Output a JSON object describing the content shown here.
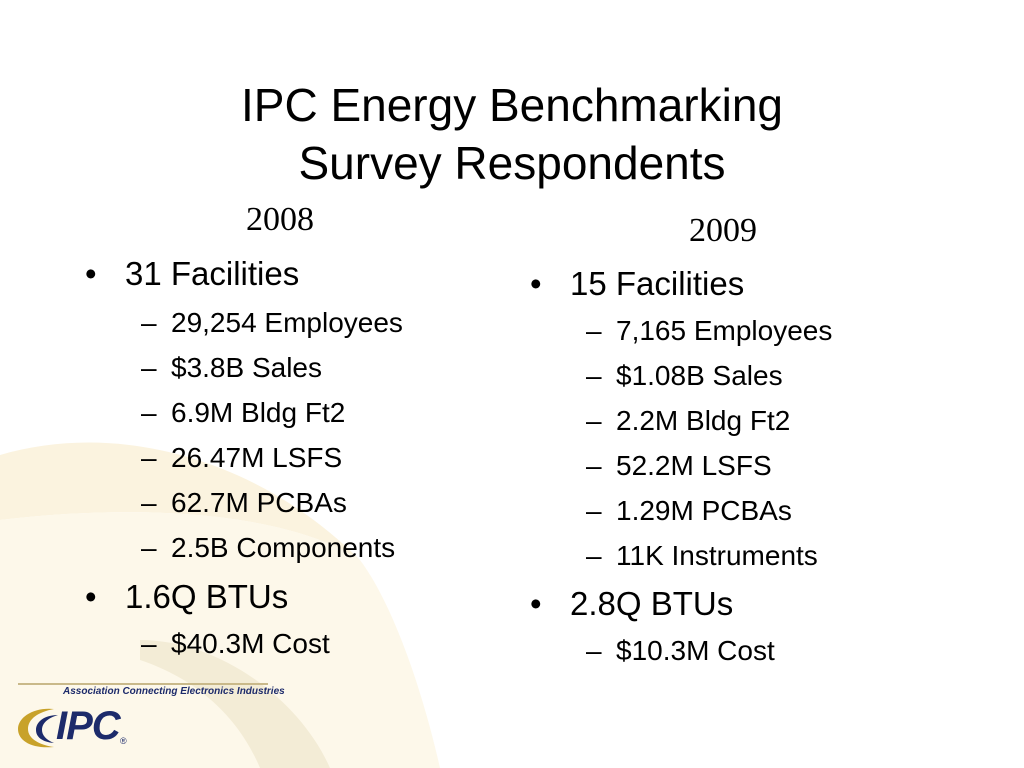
{
  "slide": {
    "title_line1": "IPC Energy Benchmarking",
    "title_line2": "Survey Respondents"
  },
  "col2008": {
    "year": "2008",
    "bullet_facilities": "31 Facilities",
    "facility_details": [
      "29,254 Employees",
      "$3.8B Sales",
      "6.9M Bldg Ft2",
      "26.47M LSFS",
      "62.7M PCBAs",
      "2.5B Components"
    ],
    "bullet_btus": "1.6Q BTUs",
    "cost": "$40.3M Cost"
  },
  "col2009": {
    "year": "2009",
    "bullet_facilities": "15 Facilities",
    "facility_details": [
      "7,165 Employees",
      "$1.08B Sales",
      "2.2M Bldg Ft2",
      "52.2M LSFS",
      "1.29M PCBAs",
      "11K Instruments"
    ],
    "bullet_btus": "2.8Q BTUs",
    "cost": "$10.3M Cost"
  },
  "markers": {
    "bullet": "•",
    "dash": "–"
  },
  "footer": {
    "tagline": "Association Connecting Electronics Industries",
    "logo_text": "IPC",
    "registered": "®"
  },
  "colors": {
    "swoosh_light": "#fbf3df",
    "swoosh_mid": "#f4e7bf",
    "logo_gold": "#c8a22a",
    "logo_navy": "#1d2b6b"
  }
}
